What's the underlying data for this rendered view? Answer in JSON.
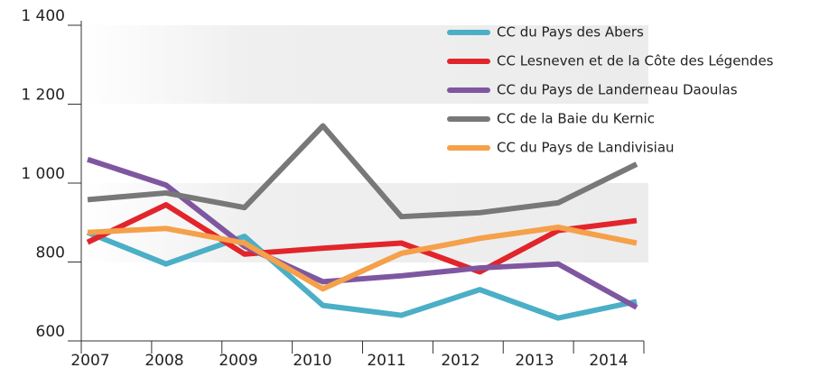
{
  "chart_data": {
    "type": "line",
    "categories": [
      "2007",
      "2008",
      "2009",
      "2010",
      "2011",
      "2012",
      "2013",
      "2014"
    ],
    "series": [
      {
        "name": "CC du Pays des Abers",
        "color": "#4bafc6",
        "values": [
          875,
          795,
          865,
          690,
          665,
          730,
          658,
          700
        ]
      },
      {
        "name": "CC Lesneven et de la Côte des Légendes",
        "color": "#e2242b",
        "values": [
          850,
          945,
          820,
          835,
          848,
          775,
          880,
          905
        ]
      },
      {
        "name": "CC du Pays de Landerneau Daoulas",
        "color": "#7f57a0",
        "values": [
          1060,
          995,
          840,
          750,
          765,
          785,
          795,
          685
        ]
      },
      {
        "name": "CC de la Baie du Kernic",
        "color": "#787878",
        "values": [
          958,
          975,
          938,
          1145,
          915,
          925,
          950,
          1048
        ]
      },
      {
        "name": "CC du Pays de Landivisiau",
        "color": "#f5a04a",
        "values": [
          875,
          885,
          848,
          732,
          822,
          860,
          888,
          848
        ]
      }
    ],
    "ylim": [
      600,
      1400
    ],
    "yticks": [
      600,
      800,
      {
        "value": 1000,
        "label": "1 000"
      },
      {
        "value": 1200,
        "label": "1 200"
      },
      {
        "value": 1400,
        "label": "1 400"
      }
    ],
    "legend": "top-right"
  }
}
